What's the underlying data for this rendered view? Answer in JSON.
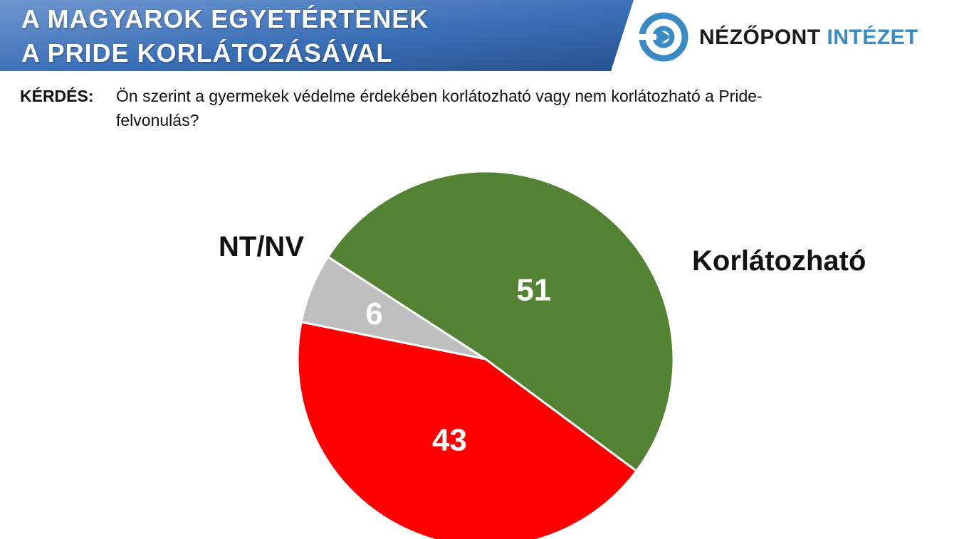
{
  "header": {
    "title_line1": "A MAGYAROK EGYETÉRTENEK",
    "title_line2": "A PRIDE KORLÁTOZÁSÁVAL",
    "logo_text_a": "NÉZŐPONT",
    "logo_text_b": "INTÉZET",
    "banner_color": "#3b6fb6",
    "logo_color": "#3a8ac4"
  },
  "question": {
    "label": "KÉRDÉS:",
    "text": "Ön szerint a gyermekek védelme érdekében korlátozható vagy nem korlátozható a Pride-felvonulás?"
  },
  "chart_data": {
    "type": "pie",
    "title": "",
    "slices": [
      {
        "name": "Korlátozható",
        "value": 51,
        "color": "#548235"
      },
      {
        "name": "",
        "value": 43,
        "color": "#ff0000"
      },
      {
        "name": "NT/NV",
        "value": 6,
        "color": "#bfbfbf"
      }
    ],
    "data_labels": [
      "51",
      "43",
      "6"
    ],
    "category_labels": [
      "Korlátozható",
      "NT/NV"
    ]
  }
}
